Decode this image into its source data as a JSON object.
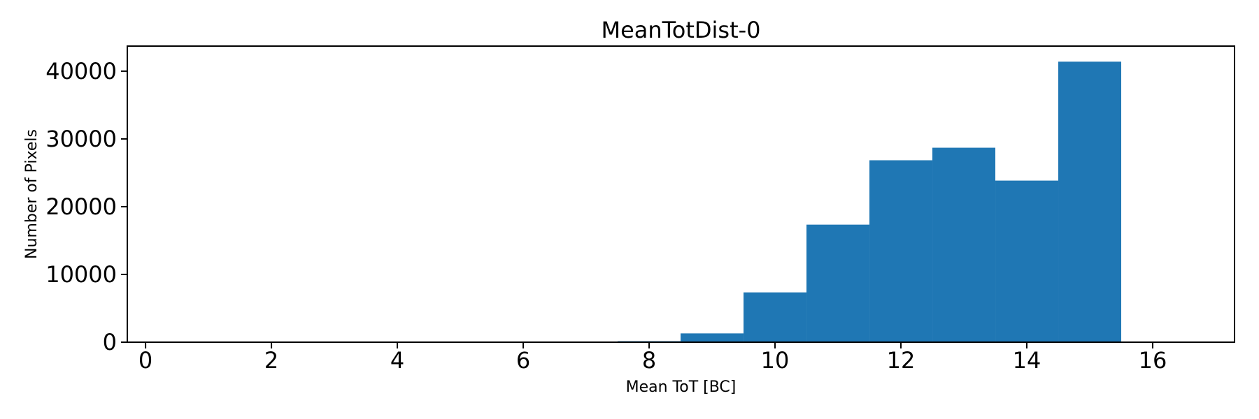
{
  "chart_data": {
    "type": "bar",
    "subtype": "histogram",
    "title": "MeanTotDist-0",
    "xlabel": "Mean ToT [BC]",
    "ylabel": "Number of Pixels",
    "bin_edges": [
      7.5,
      8.5,
      9.5,
      10.5,
      11.5,
      12.5,
      13.5,
      14.5,
      15.5
    ],
    "counts": [
      150,
      1300,
      7350,
      17350,
      26850,
      28700,
      23850,
      41400
    ],
    "bar_color": "#1f77b4",
    "spine_color": "#000000",
    "text_color": "#000000",
    "xlim": [
      -0.29,
      17.3
    ],
    "ylim": [
      0,
      43700
    ],
    "xticks": [
      0,
      2,
      4,
      6,
      8,
      10,
      12,
      14,
      16
    ],
    "yticks": [
      0,
      10000,
      20000,
      30000,
      40000
    ],
    "grid": false,
    "legend": false
  }
}
